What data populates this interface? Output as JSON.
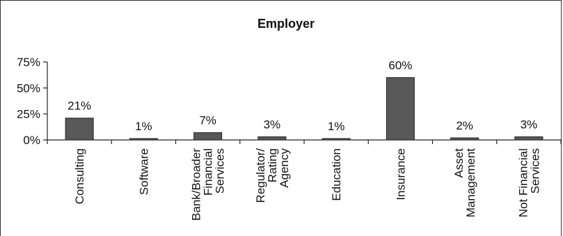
{
  "chart_data": {
    "type": "bar",
    "title": "Employer",
    "categories": [
      [
        "Consulting"
      ],
      [
        "Software"
      ],
      [
        "Bank/Broader",
        "Financial",
        "Services"
      ],
      [
        "Regulator/",
        "Rating",
        "Agency"
      ],
      [
        "Education"
      ],
      [
        "Insurance"
      ],
      [
        "Asset",
        "Management"
      ],
      [
        "Not Financial",
        "Services"
      ]
    ],
    "values": [
      21,
      1,
      7,
      3,
      1,
      60,
      2,
      3
    ],
    "value_labels": [
      "21%",
      "1%",
      "7%",
      "3%",
      "1%",
      "60%",
      "2%",
      "3%"
    ],
    "y_ticks": [
      "0%",
      "25%",
      "50%",
      "75%"
    ],
    "ylim": [
      0,
      75
    ],
    "bar_color": "#595959",
    "grid": false,
    "legend": "none"
  }
}
